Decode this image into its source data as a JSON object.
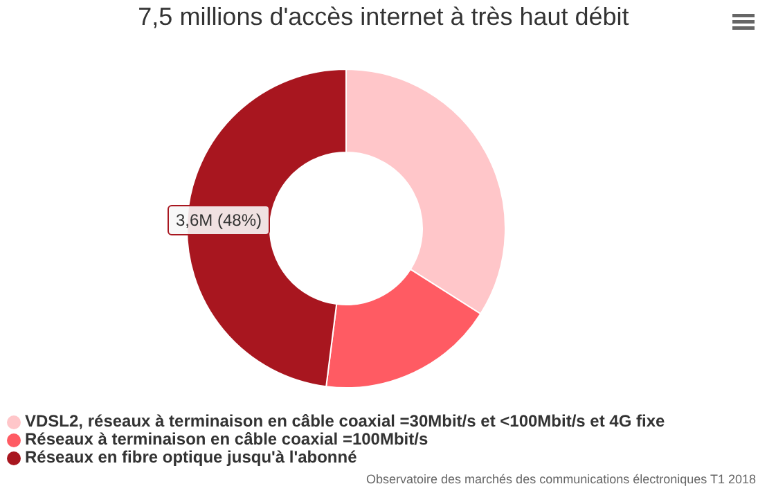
{
  "chart_data": {
    "type": "donut",
    "title": "7,5 millions d'accès internet à très haut débit",
    "categories": [
      "VDSL2, réseaux à terminaison en câble coaxial =30Mbit/s et <100Mbit/s et 4G fixe",
      "Réseaux à terminaison en câble coaxial =100Mbit/s",
      "Réseaux en fibre optique jusqu'à l'abonné"
    ],
    "values": [
      34,
      18,
      48
    ],
    "colors": [
      "#ffc6c9",
      "#ff5b63",
      "#a8161f"
    ],
    "legend": "bottom",
    "annotations": [
      "3,6M (48%)",
      "Observatoire des marchés des communications électroniques T1 2018"
    ]
  }
}
